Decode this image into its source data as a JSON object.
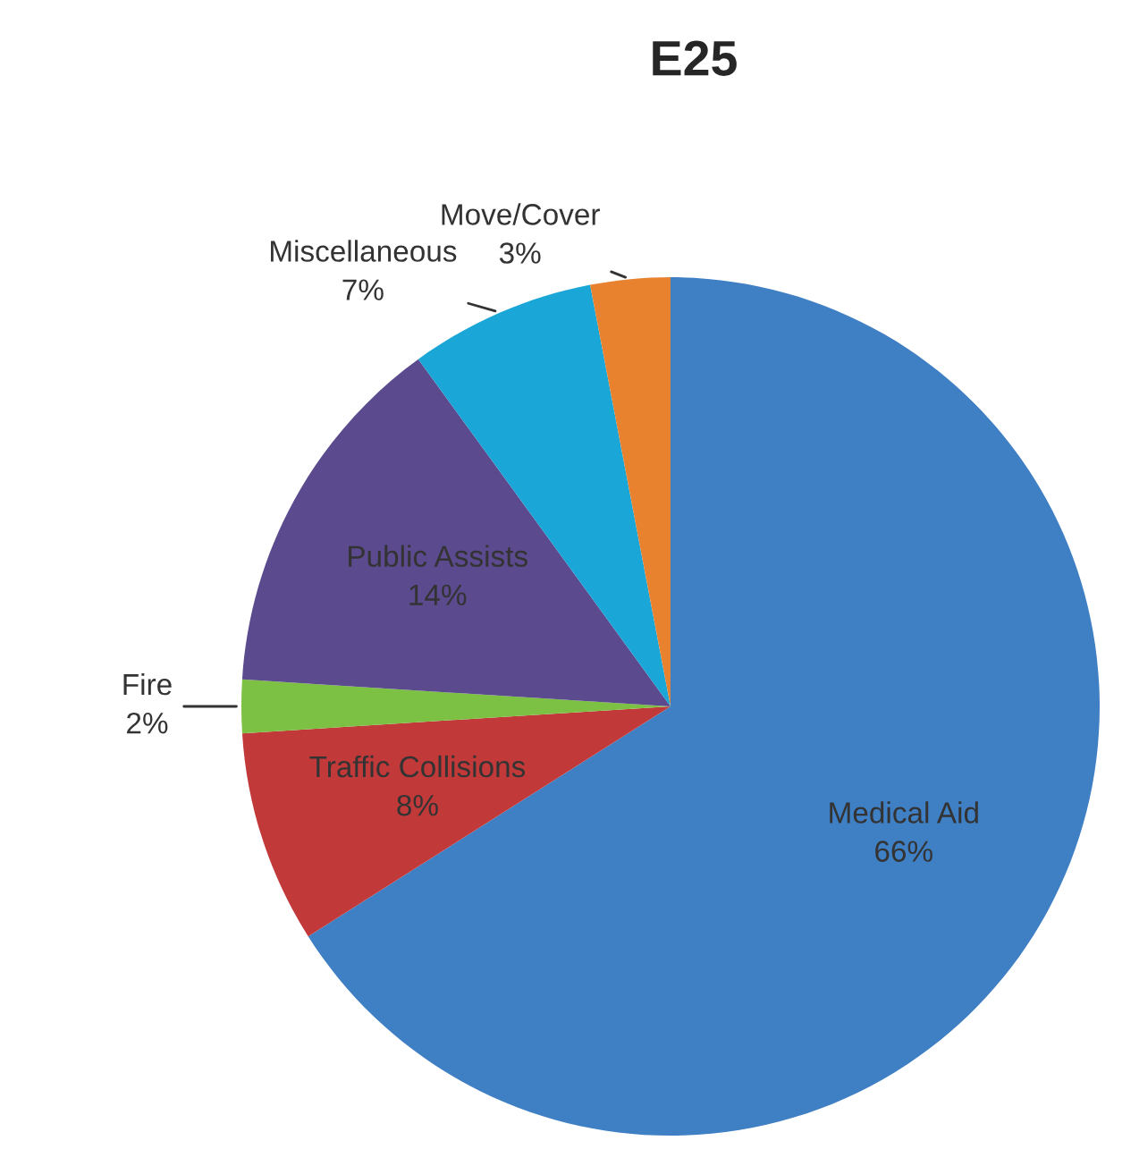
{
  "chart_data": {
    "type": "pie",
    "title": "E25",
    "categories": [
      "Medical Aid",
      "Traffic Collisions",
      "Fire",
      "Public Assists",
      "Miscellaneous",
      "Move/Cover"
    ],
    "values": [
      66,
      8,
      2,
      14,
      7,
      3
    ],
    "colors": [
      "#3f7fc4",
      "#c2393a",
      "#7cc143",
      "#5b4a8e",
      "#1ba6d8",
      "#e8822f"
    ],
    "value_labels": [
      "66%",
      "8%",
      "2%",
      "14%",
      "7%",
      "3%"
    ]
  }
}
